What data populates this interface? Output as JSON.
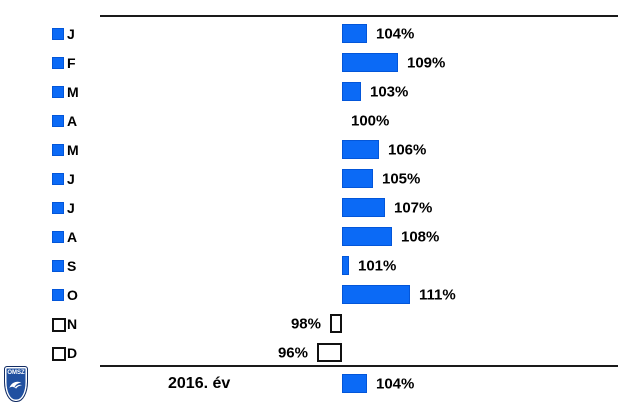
{
  "chart_data": {
    "type": "bar",
    "orientation": "horizontal",
    "title": "",
    "baseline_value": 100,
    "unit": "%",
    "legend_position": "left",
    "grid": false,
    "categories": [
      "J",
      "F",
      "M",
      "A",
      "M",
      "J",
      "J",
      "A",
      "S",
      "O",
      "N",
      "D"
    ],
    "values": [
      104,
      109,
      103,
      100,
      106,
      105,
      107,
      108,
      101,
      111,
      98,
      96
    ],
    "value_labels": [
      "104%",
      "109%",
      "103%",
      "100%",
      "106%",
      "105%",
      "107%",
      "108%",
      "101%",
      "111%",
      "98%",
      "96%"
    ],
    "summary_row": {
      "label": "2016. év",
      "value": 104,
      "display": "104%"
    },
    "colors": {
      "bar_above_fill": "#0b6af6",
      "bar_above_border": "#0356d9",
      "bar_below_fill": "#ffffff",
      "bar_below_border": "#111111",
      "rule": "#1a1a1a",
      "text": "#000000"
    }
  },
  "logo": {
    "text": "OMSZ"
  }
}
